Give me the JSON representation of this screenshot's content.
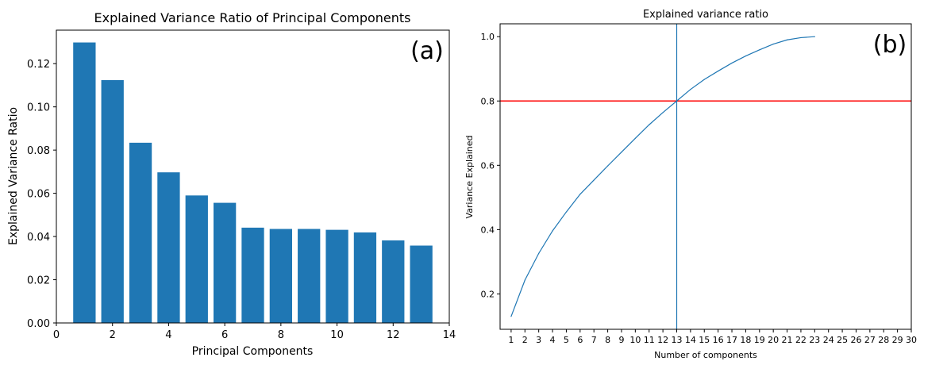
{
  "chart_data": [
    {
      "type": "bar",
      "title": "Explained Variance Ratio of Principal Components",
      "xlabel": "Principal Components",
      "ylabel": "Explained Variance Ratio",
      "panel_label": "(a)",
      "color": "#1f77b4",
      "x": [
        1,
        2,
        3,
        4,
        5,
        6,
        7,
        8,
        9,
        10,
        11,
        12,
        13
      ],
      "values": [
        0.1298,
        0.1124,
        0.0834,
        0.0697,
        0.059,
        0.0556,
        0.0441,
        0.0435,
        0.0435,
        0.0431,
        0.0419,
        0.0382,
        0.0358
      ],
      "xlim": [
        0,
        14
      ],
      "ylim": [
        0,
        0.1355
      ],
      "xticks": [
        0,
        2,
        4,
        6,
        8,
        10,
        12,
        14
      ],
      "xtick_labels": [
        "0",
        "2",
        "4",
        "6",
        "8",
        "10",
        "12",
        "14"
      ],
      "yticks": [
        0,
        0.02,
        0.04,
        0.06,
        0.08,
        0.1,
        0.12
      ],
      "ytick_labels": [
        "0.00",
        "0.02",
        "0.04",
        "0.06",
        "0.08",
        "0.10",
        "0.12"
      ],
      "grid": false
    },
    {
      "type": "line",
      "title": "Explained variance ratio",
      "xlabel": "Number of components",
      "ylabel": "Variance Explained",
      "panel_label": "(b)",
      "line_color": "#1f77b4",
      "hline": {
        "y": 0.8,
        "color": "#ff0000"
      },
      "vline": {
        "x": 13,
        "color": "#1f77b4"
      },
      "x": [
        1,
        2,
        3,
        4,
        5,
        6,
        7,
        8,
        9,
        10,
        11,
        12,
        13,
        14,
        15,
        16,
        17,
        18,
        19,
        20,
        21,
        22,
        23
      ],
      "y": [
        0.13,
        0.243,
        0.326,
        0.396,
        0.455,
        0.51,
        0.554,
        0.598,
        0.641,
        0.684,
        0.726,
        0.764,
        0.8,
        0.836,
        0.867,
        0.893,
        0.918,
        0.94,
        0.959,
        0.977,
        0.99,
        0.997,
        1.0
      ],
      "xlim": [
        0.2,
        30
      ],
      "ylim": [
        0.09,
        1.04
      ],
      "xticks": [
        1,
        2,
        3,
        4,
        5,
        6,
        7,
        8,
        9,
        10,
        11,
        12,
        13,
        14,
        15,
        16,
        17,
        18,
        19,
        20,
        21,
        22,
        23,
        24,
        25,
        26,
        27,
        28,
        29,
        30
      ],
      "xtick_labels": [
        "1",
        "2",
        "3",
        "4",
        "5",
        "6",
        "7",
        "8",
        "9",
        "10",
        "11",
        "12",
        "13",
        "14",
        "15",
        "16",
        "17",
        "18",
        "19",
        "20",
        "21",
        "22",
        "23",
        "24",
        "25",
        "26",
        "27",
        "28",
        "29",
        "30"
      ],
      "yticks": [
        0.2,
        0.4,
        0.6,
        0.8,
        1.0
      ],
      "ytick_labels": [
        "0.2",
        "0.4",
        "0.6",
        "0.8",
        "1.0"
      ],
      "grid": false
    }
  ]
}
